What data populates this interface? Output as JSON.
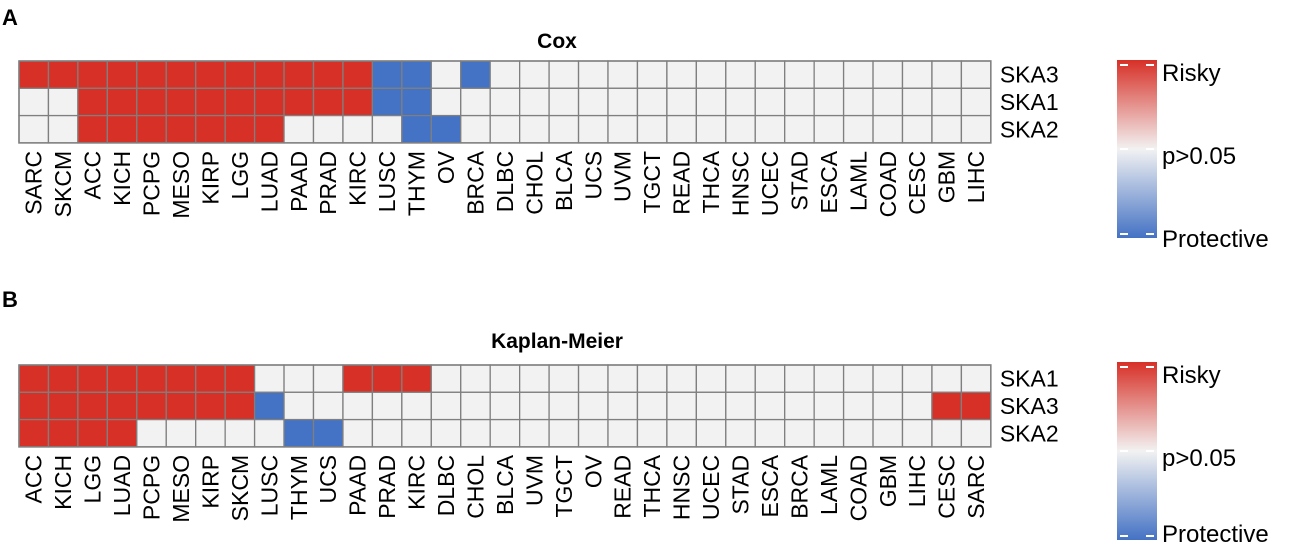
{
  "colors": {
    "risky": "#d73027",
    "protective": "#4472c4",
    "neutral": "#f2f2f2",
    "grid": "#7f7f7f"
  },
  "legend": {
    "top": "Risky",
    "middle": "p>0.05",
    "bottom": "Protective"
  },
  "chart_data": [
    {
      "type": "heatmap",
      "panel": "A",
      "title": "Cox",
      "value_scale": {
        "1": "Risky",
        "0": "p>0.05",
        "-1": "Protective"
      },
      "rows": [
        "SKA3",
        "SKA1",
        "SKA2"
      ],
      "columns": [
        "SARC",
        "SKCM",
        "ACC",
        "KICH",
        "PCPG",
        "MESO",
        "KIRP",
        "LGG",
        "LUAD",
        "PAAD",
        "PRAD",
        "KIRC",
        "LUSC",
        "THYM",
        "OV",
        "BRCA",
        "DLBC",
        "CHOL",
        "BLCA",
        "UCS",
        "UVM",
        "TGCT",
        "READ",
        "THCA",
        "HNSC",
        "UCEC",
        "STAD",
        "ESCA",
        "LAML",
        "COAD",
        "CESC",
        "GBM",
        "LIHC"
      ],
      "values": [
        [
          1,
          1,
          1,
          1,
          1,
          1,
          1,
          1,
          1,
          1,
          1,
          1,
          -1,
          -1,
          0,
          -1,
          0,
          0,
          0,
          0,
          0,
          0,
          0,
          0,
          0,
          0,
          0,
          0,
          0,
          0,
          0,
          0,
          0
        ],
        [
          0,
          0,
          1,
          1,
          1,
          1,
          1,
          1,
          1,
          1,
          1,
          1,
          -1,
          -1,
          0,
          0,
          0,
          0,
          0,
          0,
          0,
          0,
          0,
          0,
          0,
          0,
          0,
          0,
          0,
          0,
          0,
          0,
          0
        ],
        [
          0,
          0,
          1,
          1,
          1,
          1,
          1,
          1,
          1,
          0,
          0,
          0,
          0,
          -1,
          -1,
          0,
          0,
          0,
          0,
          0,
          0,
          0,
          0,
          0,
          0,
          0,
          0,
          0,
          0,
          0,
          0,
          0,
          0
        ]
      ]
    },
    {
      "type": "heatmap",
      "panel": "B",
      "title": "Kaplan-Meier",
      "value_scale": {
        "1": "Risky",
        "0": "p>0.05",
        "-1": "Protective"
      },
      "rows": [
        "SKA1",
        "SKA3",
        "SKA2"
      ],
      "columns": [
        "ACC",
        "KICH",
        "LGG",
        "LUAD",
        "PCPG",
        "MESO",
        "KIRP",
        "SKCM",
        "LUSC",
        "THYM",
        "UCS",
        "PAAD",
        "PRAD",
        "KIRC",
        "DLBC",
        "CHOL",
        "BLCA",
        "UVM",
        "TGCT",
        "OV",
        "READ",
        "THCA",
        "HNSC",
        "UCEC",
        "STAD",
        "ESCA",
        "BRCA",
        "LAML",
        "COAD",
        "GBM",
        "LIHC",
        "CESC",
        "SARC"
      ],
      "values": [
        [
          1,
          1,
          1,
          1,
          1,
          1,
          1,
          1,
          0,
          0,
          0,
          1,
          1,
          1,
          0,
          0,
          0,
          0,
          0,
          0,
          0,
          0,
          0,
          0,
          0,
          0,
          0,
          0,
          0,
          0,
          0,
          0,
          0
        ],
        [
          1,
          1,
          1,
          1,
          1,
          1,
          1,
          1,
          -1,
          0,
          0,
          0,
          0,
          0,
          0,
          0,
          0,
          0,
          0,
          0,
          0,
          0,
          0,
          0,
          0,
          0,
          0,
          0,
          0,
          0,
          0,
          1,
          1
        ],
        [
          1,
          1,
          1,
          1,
          0,
          0,
          0,
          0,
          0,
          -1,
          -1,
          0,
          0,
          0,
          0,
          0,
          0,
          0,
          0,
          0,
          0,
          0,
          0,
          0,
          0,
          0,
          0,
          0,
          0,
          0,
          0,
          0,
          0
        ]
      ]
    }
  ]
}
